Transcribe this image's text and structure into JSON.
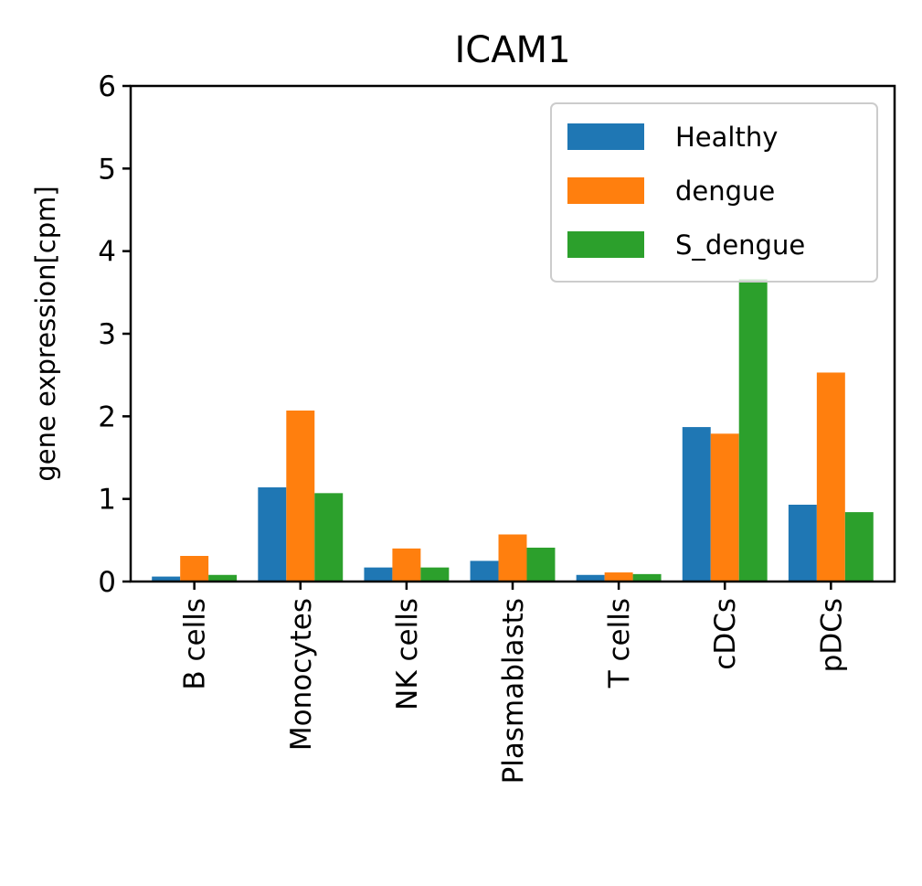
{
  "chart_data": {
    "type": "bar",
    "title": "ICAM1",
    "xlabel": "",
    "ylabel": "gene expression[cpm]",
    "ylim": [
      0,
      6
    ],
    "yticks": [
      0,
      1,
      2,
      3,
      4,
      5,
      6
    ],
    "categories": [
      "B cells",
      "Monocytes",
      "NK cells",
      "Plasmablasts",
      "T cells",
      "cDCs",
      "pDCs"
    ],
    "series": [
      {
        "name": "Healthy",
        "color": "#1f77b4",
        "values": [
          0.06,
          1.14,
          0.17,
          0.25,
          0.08,
          1.87,
          0.93
        ]
      },
      {
        "name": "dengue",
        "color": "#ff7f0e",
        "values": [
          0.31,
          2.07,
          0.4,
          0.57,
          0.11,
          1.79,
          2.53
        ]
      },
      {
        "name": "S_dengue",
        "color": "#2ca02c",
        "values": [
          0.08,
          1.07,
          0.17,
          0.41,
          0.09,
          3.66,
          0.84
        ]
      }
    ],
    "grid": false,
    "legend_position": "upper right"
  }
}
